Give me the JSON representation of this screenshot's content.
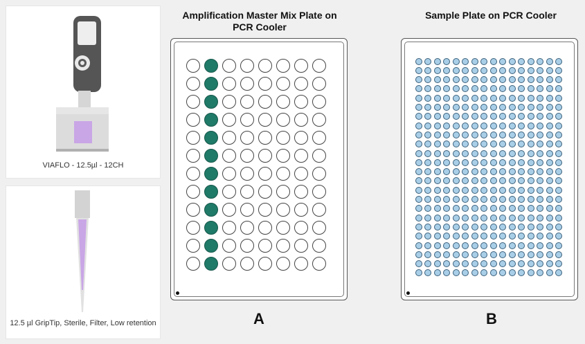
{
  "pipette_card": {
    "caption": "VIAFLO - 12.5µl - 12CH",
    "icon": "electronic-pipette-icon"
  },
  "tip_card": {
    "caption": "12.5 µl GripTip, Sterile, Filter, Low retention",
    "icon": "pipette-tip-icon"
  },
  "plate_a": {
    "title_line1": "Amplification  Master Mix Plate on",
    "title_line2": "PCR Cooler",
    "letter": "A",
    "rows": 12,
    "cols": 8,
    "filled_column": 2,
    "filled_color": "#1f7a68",
    "empty_color": "#ffffff"
  },
  "plate_b": {
    "title": "Sample Plate on PCR Cooler",
    "letter": "B",
    "rows": 24,
    "cols": 16,
    "well_color": "#a9cfe8"
  },
  "colors": {
    "accent_purple": "#c9a6e6",
    "pipette_gray": "#5a5a5a",
    "plate_border": "#555555"
  }
}
